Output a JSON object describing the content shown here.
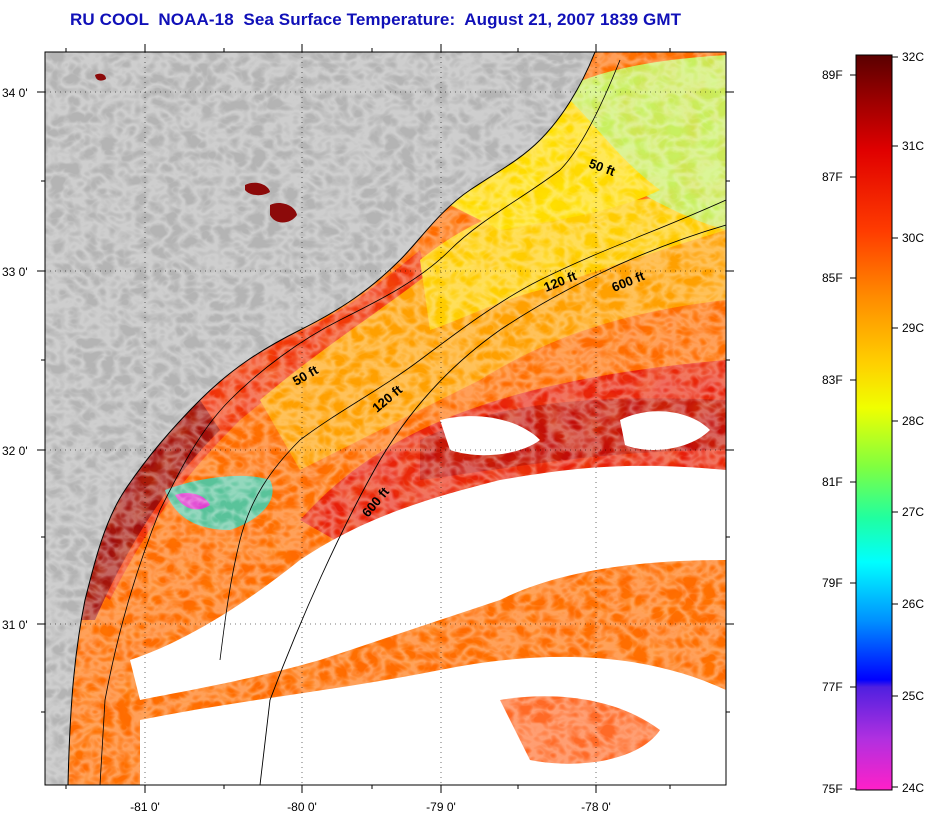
{
  "title": "RU COOL  NOAA-18  Sea Surface Temperature:  August 21, 2007 1839 GMT",
  "map": {
    "lat_ticks": [
      "34 0'",
      "33 0'",
      "32 0'",
      "31 0'"
    ],
    "lon_ticks": [
      "-81 0'",
      "-80 0'",
      "-79 0'",
      "-78 0'"
    ],
    "contour_labels": [
      "50 ft",
      "120 ft",
      "600 ft",
      "50 ft",
      "120 ft",
      "600 ft"
    ],
    "colors": {
      "land": "#b4b4b4",
      "cloud": "#ffffff",
      "sst_hot": "#8c0a0a",
      "sst_warm": "#ff5500",
      "sst_mid": "#ffd400",
      "sst_cool": "#b4ff64"
    }
  },
  "colorbar": {
    "celsius_labels": [
      "32C",
      "31C",
      "30C",
      "29C",
      "28C",
      "27C",
      "26C",
      "25C",
      "24C"
    ],
    "fahrenheit_labels": [
      "89F",
      "87F",
      "85F",
      "83F",
      "81F",
      "79F",
      "77F",
      "75F"
    ]
  }
}
